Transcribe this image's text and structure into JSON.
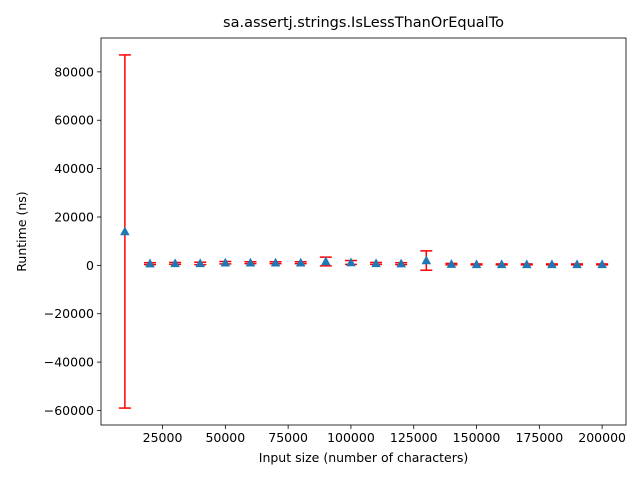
{
  "chart_data": {
    "type": "scatter",
    "title": "sa.assertj.strings.IsLessThanOrEqualTo",
    "xlabel": "Input size (number of characters)",
    "ylabel": "Runtime (ns)",
    "xlim": [
      500,
      209500
    ],
    "ylim": [
      -66000,
      94000
    ],
    "grid": false,
    "x_ticks": [
      {
        "value": 25000,
        "label": "25000"
      },
      {
        "value": 50000,
        "label": "50000"
      },
      {
        "value": 75000,
        "label": "75000"
      },
      {
        "value": 100000,
        "label": "100000"
      },
      {
        "value": 125000,
        "label": "125000"
      },
      {
        "value": 150000,
        "label": "150000"
      },
      {
        "value": 175000,
        "label": "175000"
      },
      {
        "value": 200000,
        "label": "200000"
      }
    ],
    "y_ticks": [
      {
        "value": -60000,
        "label": "−60000"
      },
      {
        "value": -40000,
        "label": "−40000"
      },
      {
        "value": -20000,
        "label": "−20000"
      },
      {
        "value": 0,
        "label": "0"
      },
      {
        "value": 20000,
        "label": "20000"
      },
      {
        "value": 40000,
        "label": "40000"
      },
      {
        "value": 60000,
        "label": "60000"
      },
      {
        "value": 80000,
        "label": "80000"
      }
    ],
    "marker_color": "#1f77b4",
    "errorbar_color": "#ff0000",
    "series": [
      {
        "x": [
          10000,
          20000,
          30000,
          40000,
          50000,
          60000,
          70000,
          80000,
          90000,
          100000,
          110000,
          120000,
          130000,
          140000,
          150000,
          160000,
          170000,
          180000,
          190000,
          200000
        ],
        "y": [
          14000,
          700,
          800,
          800,
          1100,
          1100,
          1100,
          1100,
          1600,
          1200,
          800,
          700,
          2000,
          500,
          400,
          400,
          400,
          400,
          400,
          400
        ],
        "yerr": [
          73000,
          400,
          400,
          500,
          500,
          400,
          400,
          400,
          1800,
          800,
          400,
          400,
          4000,
          300,
          200,
          200,
          200,
          200,
          200,
          200
        ]
      }
    ]
  }
}
